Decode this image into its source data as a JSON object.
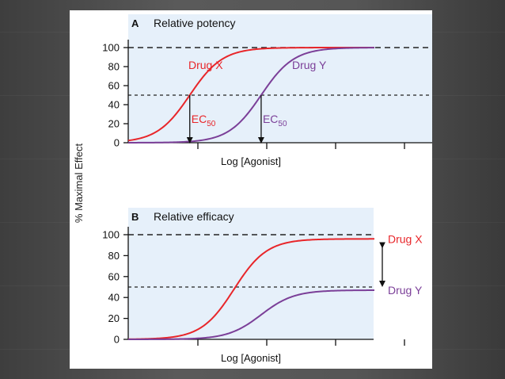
{
  "figure": {
    "ylabel": "% Maximal Effect"
  },
  "chart_data": [
    {
      "panel_letter": "A",
      "title": "Relative potency",
      "type": "line",
      "xlabel": "Log [Agonist]",
      "ylim": [
        0,
        100
      ],
      "yticks": [
        "0",
        "20",
        "40",
        "60",
        "80",
        "100"
      ],
      "x_ticks_count": 4,
      "grid": false,
      "reference_lines": [
        100,
        50
      ],
      "series": [
        {
          "name": "Drug X",
          "color": "#e8262a",
          "max": 100,
          "ec50": 2.5,
          "slope": 1.5
        },
        {
          "name": "Drug Y",
          "color": "#7b3f98",
          "max": 100,
          "ec50": 5.4,
          "slope": 1.5
        }
      ],
      "annotations": [
        {
          "base": "EC",
          "sub": "50",
          "series": "Drug X"
        },
        {
          "base": "EC",
          "sub": "50",
          "series": "Drug Y"
        }
      ]
    },
    {
      "panel_letter": "B",
      "title": "Relative efficacy",
      "type": "line",
      "xlabel": "Log [Agonist]",
      "ylim": [
        0,
        100
      ],
      "yticks": [
        "0",
        "20",
        "40",
        "60",
        "80",
        "100"
      ],
      "x_ticks_count": 4,
      "grid": false,
      "reference_lines": [
        100,
        50
      ],
      "series": [
        {
          "name": "Drug X",
          "color": "#e8262a",
          "max": 96,
          "ec50": 4.3,
          "slope": 1.5
        },
        {
          "name": "Drug Y",
          "color": "#7b3f98",
          "max": 47,
          "ec50": 5.4,
          "slope": 1.5
        }
      ]
    }
  ]
}
